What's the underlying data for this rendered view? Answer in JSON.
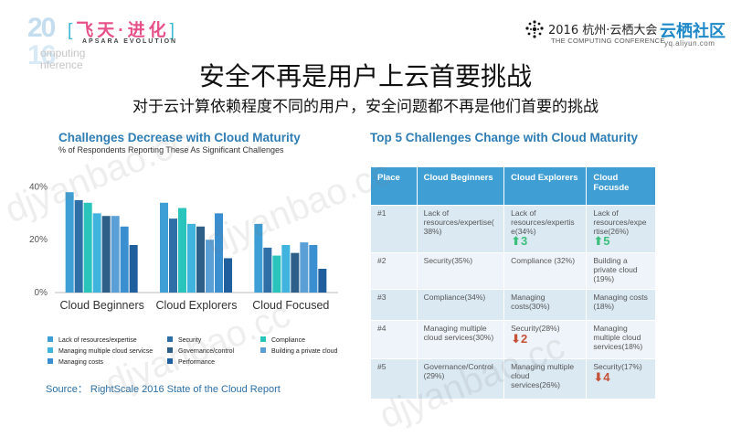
{
  "header": {
    "logo_year_top": "20",
    "logo_year_bottom": "16",
    "logo_zh_left_bracket": "[",
    "logo_zh": "飞天·进化",
    "logo_zh_right_bracket": "]",
    "logo_en": "APSARA EVOLUTION",
    "logo_computing_1": "omputing",
    "logo_computing_2": "nference",
    "conference_title": "2016 杭州·云栖大会",
    "conference_sub": "THE COMPUTING CONFERENCE",
    "brand": "云栖社区",
    "brand_url": "yq.aliyun.com"
  },
  "slide": {
    "title": "安全不再是用户上云首要挑战",
    "subtitle": "对于云计算依赖程度不同的用户，安全问题都不再是他们首要的挑战"
  },
  "watermark": "djyanbao.cc",
  "chart_data": {
    "type": "bar",
    "title": "Challenges Decrease with Cloud Maturity",
    "subtitle": "% of Respondents Reporting These As Significant Challenges",
    "categories": [
      "Cloud Beginners",
      "Cloud Explorers",
      "Cloud Focused"
    ],
    "ylim": [
      0,
      45
    ],
    "yticks": [
      "0%",
      "20%",
      "40%"
    ],
    "series": [
      {
        "name": "Lack of resources/expertise",
        "color": "#3d9fd6",
        "values": [
          38,
          34,
          26
        ]
      },
      {
        "name": "Security",
        "color": "#2f6fa8",
        "values": [
          35,
          28,
          17
        ]
      },
      {
        "name": "Compliance",
        "color": "#29c4bb",
        "values": [
          34,
          32,
          14
        ]
      },
      {
        "name": "Managing multiple cloud servicse",
        "color": "#40b4de",
        "values": [
          30,
          26,
          18
        ]
      },
      {
        "name": "Governance/control",
        "color": "#2d5f88",
        "values": [
          29,
          25,
          15
        ]
      },
      {
        "name": "Building a private cloud",
        "color": "#5a9fd6",
        "values": [
          29,
          20,
          19
        ]
      },
      {
        "name": "Managing costs",
        "color": "#3a8fd0",
        "values": [
          25,
          30,
          18
        ]
      },
      {
        "name": "Performance",
        "color": "#1f5f9e",
        "values": [
          18,
          13,
          9
        ]
      }
    ],
    "legend": [
      {
        "label": "Lack of resources/expertise",
        "color": "#3d9fd6"
      },
      {
        "label": "Security",
        "color": "#2f6fa8"
      },
      {
        "label": "Compliance",
        "color": "#29c4bb"
      },
      {
        "label": "Managing multiple cloud servicse",
        "color": "#40b4de"
      },
      {
        "label": "Governance/control",
        "color": "#2d5f88"
      },
      {
        "label": "Building a private cloud",
        "color": "#5a9fd6"
      },
      {
        "label": "Managing costs",
        "color": "#3a8fd0"
      },
      {
        "label": "Performance",
        "color": "#1f5f9e"
      }
    ],
    "source": "Source： RightScale 2016 State of the Cloud Report"
  },
  "table": {
    "title": "Top 5 Challenges Change with Cloud Maturity",
    "headers": [
      "Place",
      "Cloud Beginners",
      "Cloud Explorers",
      "Cloud Focusde"
    ],
    "rows": [
      {
        "place": "#1",
        "beginners": "Lack of resources/expertise( 38%)",
        "explorers": "Lack of resources/expertis e(34%)",
        "explorers_change": "⬆3",
        "focused": "Lack of resources/expe rtise(26%)",
        "focused_change": "⬆5"
      },
      {
        "place": "#2",
        "beginners": "Security(35%)",
        "explorers": "Compliance (32%)",
        "explorers_change": "",
        "focused": "Building a private cloud (19%)",
        "focused_change": ""
      },
      {
        "place": "#3",
        "beginners": "Compliance(34%)",
        "explorers": "Managing costs(30%)",
        "explorers_change": "",
        "focused": "Managing costs (18%)",
        "focused_change": ""
      },
      {
        "place": "#4",
        "beginners": "Managing multiple cloud services(30%)",
        "explorers": "Security(28%)",
        "explorers_change": "⬇2",
        "focused": "Managing multiple cloud services(18%)",
        "focused_change": ""
      },
      {
        "place": "#5",
        "beginners": "Governance/Control (29%)",
        "explorers": "Managing multiple cloud services(26%)",
        "explorers_change": "",
        "focused": "Security(17%)",
        "focused_change": "⬇4"
      }
    ]
  }
}
